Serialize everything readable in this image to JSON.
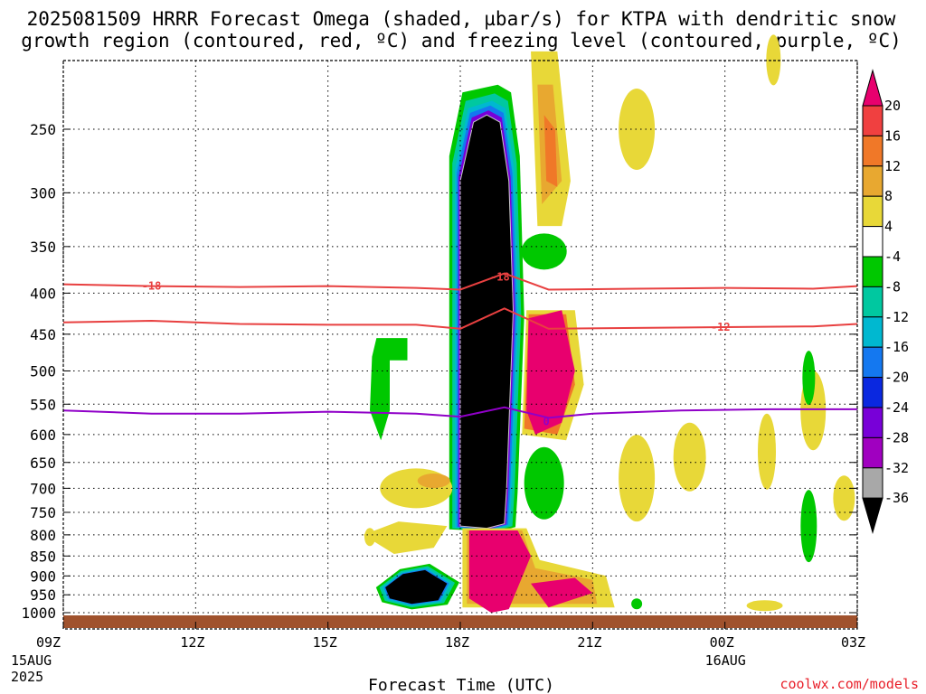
{
  "chart_data": {
    "type": "heatmap",
    "title_line1": "2025081509 HRRR Forecast Omega (shaded, µbar/s) for KTPA with dendritic snow",
    "title_line2": "growth region (contoured, red, ºC) and freezing level (contoured, purple, ºC)",
    "xlabel": "Forecast Time (UTC)",
    "credit": "coolwx.com/models",
    "x_ticks": [
      {
        "label": "09Z",
        "hour": 0,
        "sub": [
          "15AUG",
          "2025"
        ]
      },
      {
        "label": "12Z",
        "hour": 3,
        "sub": []
      },
      {
        "label": "15Z",
        "hour": 6,
        "sub": []
      },
      {
        "label": "18Z",
        "hour": 9,
        "sub": []
      },
      {
        "label": "21Z",
        "hour": 12,
        "sub": []
      },
      {
        "label": "00Z",
        "hour": 15,
        "sub": [
          "16AUG"
        ]
      },
      {
        "label": "03Z",
        "hour": 18,
        "sub": []
      }
    ],
    "x_range_hours": [
      0,
      18
    ],
    "y_range_mb": [
      1030,
      200
    ],
    "y_ticks": [
      250,
      300,
      350,
      400,
      450,
      500,
      550,
      600,
      650,
      700,
      750,
      800,
      850,
      900,
      950,
      1000
    ],
    "grid": true,
    "colorbar": {
      "labels": [
        20,
        16,
        12,
        8,
        4,
        -4,
        -8,
        -12,
        -16,
        -20,
        -24,
        -28,
        -32,
        -36
      ],
      "colors": [
        "#e8006e",
        "#f04040",
        "#f07828",
        "#e8a830",
        "#e8d838",
        "#ffffff",
        "#00c800",
        "#00c8a0",
        "#00b8d0",
        "#1478f0",
        "#0a28e0",
        "#7800d8",
        "#a000c0",
        "#a8a8a8",
        "#000000"
      ]
    },
    "omega_regions": [
      {
        "level": "-36",
        "color": "#000000",
        "outline": [
          [
            9.0,
            780
          ],
          [
            9.0,
            290
          ],
          [
            9.3,
            245
          ],
          [
            9.6,
            240
          ],
          [
            9.9,
            245
          ],
          [
            10.1,
            290
          ],
          [
            10.2,
            420
          ],
          [
            10.05,
            700
          ],
          [
            10.0,
            775
          ],
          [
            9.6,
            785
          ]
        ]
      },
      {
        "level": "pos_core",
        "color": "#e8006e",
        "outline": [
          [
            9.2,
            960
          ],
          [
            9.2,
            790
          ],
          [
            10.3,
            790
          ],
          [
            10.6,
            850
          ],
          [
            10.1,
            990
          ],
          [
            9.7,
            1000
          ]
        ]
      },
      {
        "level": "pos_core",
        "color": "#e8006e",
        "outline": [
          [
            10.5,
            560
          ],
          [
            10.55,
            430
          ],
          [
            11.3,
            420
          ],
          [
            11.6,
            500
          ],
          [
            11.3,
            580
          ],
          [
            10.7,
            600
          ]
        ]
      },
      {
        "level": "-36",
        "color": "#000000",
        "outline": [
          [
            7.3,
            930
          ],
          [
            7.7,
            895
          ],
          [
            8.2,
            885
          ],
          [
            8.7,
            920
          ],
          [
            8.5,
            965
          ],
          [
            7.9,
            975
          ],
          [
            7.4,
            960
          ]
        ]
      },
      {
        "level": "-8",
        "color": "#00c800",
        "outline": [
          [
            7.1,
            455
          ],
          [
            7.8,
            455
          ],
          [
            7.8,
            485
          ],
          [
            7.4,
            485
          ],
          [
            7.4,
            560
          ],
          [
            7.2,
            610
          ],
          [
            6.95,
            560
          ],
          [
            7.0,
            480
          ]
        ]
      }
    ],
    "dgz_contours": [
      {
        "label": "-18",
        "color": "#e84040",
        "points": [
          [
            0,
            390
          ],
          [
            2,
            392
          ],
          [
            4,
            393
          ],
          [
            6,
            392
          ],
          [
            8,
            394
          ],
          [
            9,
            396
          ],
          [
            10,
            378
          ],
          [
            11,
            396
          ],
          [
            13,
            395
          ],
          [
            15,
            394
          ],
          [
            17,
            395
          ],
          [
            18,
            392
          ]
        ]
      },
      {
        "label": "-12",
        "color": "#e84040",
        "points": [
          [
            0,
            435
          ],
          [
            2,
            433
          ],
          [
            4,
            437
          ],
          [
            6,
            438
          ],
          [
            8,
            438
          ],
          [
            9,
            443
          ],
          [
            10,
            418
          ],
          [
            11,
            443
          ],
          [
            13,
            442
          ],
          [
            15,
            441
          ],
          [
            17,
            440
          ],
          [
            18,
            437
          ]
        ]
      }
    ],
    "freezing_level": {
      "label": "0",
      "color": "#9000c8",
      "points": [
        [
          0,
          560
        ],
        [
          2,
          565
        ],
        [
          4,
          565
        ],
        [
          6,
          562
        ],
        [
          8,
          565
        ],
        [
          9,
          570
        ],
        [
          10,
          555
        ],
        [
          11,
          572
        ],
        [
          12,
          565
        ],
        [
          14,
          560
        ],
        [
          16,
          558
        ],
        [
          18,
          558
        ]
      ]
    }
  }
}
